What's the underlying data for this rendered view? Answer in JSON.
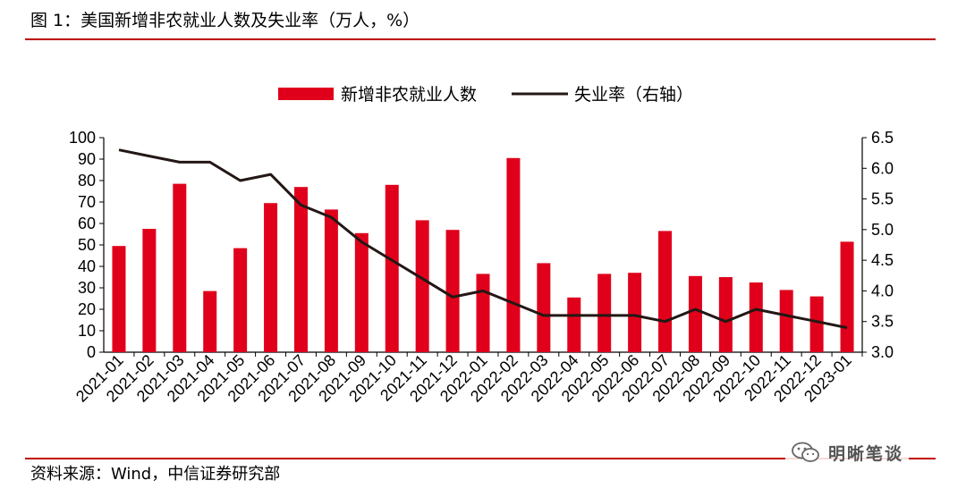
{
  "figure": {
    "title": "图 1：美国新增非农就业人数及失业率（万人，%）",
    "source": "资料来源：Wind，中信证券研究部",
    "watermark": "明晰笔谈",
    "watermark_icon": "wechat-icon"
  },
  "colors": {
    "bar": "#e0001b",
    "line": "#231815",
    "accent_rule": "#c00000"
  },
  "chart_data": {
    "type": "bar",
    "legend_position": "top-center",
    "grid": false,
    "categories": [
      "2021-01",
      "2021-02",
      "2021-03",
      "2021-04",
      "2021-05",
      "2021-06",
      "2021-07",
      "2021-08",
      "2021-09",
      "2021-10",
      "2021-11",
      "2021-12",
      "2022-01",
      "2022-02",
      "2022-03",
      "2022-04",
      "2022-05",
      "2022-06",
      "2022-07",
      "2022-08",
      "2022-09",
      "2022-10",
      "2022-11",
      "2022-12",
      "2023-01"
    ],
    "series": [
      {
        "name": "新增非农就业人数",
        "type": "bar",
        "axis": "left",
        "values": [
          49.5,
          57.5,
          78.5,
          28.5,
          48.5,
          69.5,
          77,
          66.5,
          55.5,
          78,
          61.5,
          57,
          36.5,
          90.5,
          41.5,
          25.5,
          36.5,
          37,
          56.5,
          35.5,
          35,
          32.5,
          29,
          26,
          51.5
        ]
      },
      {
        "name": "失业率（右轴）",
        "type": "line",
        "axis": "right",
        "values": [
          6.3,
          6.2,
          6.1,
          6.1,
          5.8,
          5.9,
          5.4,
          5.2,
          4.8,
          4.5,
          4.2,
          3.9,
          4.0,
          3.8,
          3.6,
          3.6,
          3.6,
          3.6,
          3.5,
          3.7,
          3.5,
          3.7,
          3.6,
          3.5,
          3.4
        ]
      }
    ],
    "y_left": {
      "min": 0,
      "max": 100,
      "ticks": [
        "0",
        "10",
        "20",
        "30",
        "40",
        "50",
        "60",
        "70",
        "80",
        "90",
        "100"
      ]
    },
    "y_right": {
      "min": 3.0,
      "max": 6.5,
      "ticks": [
        "3.0",
        "3.5",
        "4.0",
        "4.5",
        "5.0",
        "5.5",
        "6.0",
        "6.5"
      ]
    }
  }
}
